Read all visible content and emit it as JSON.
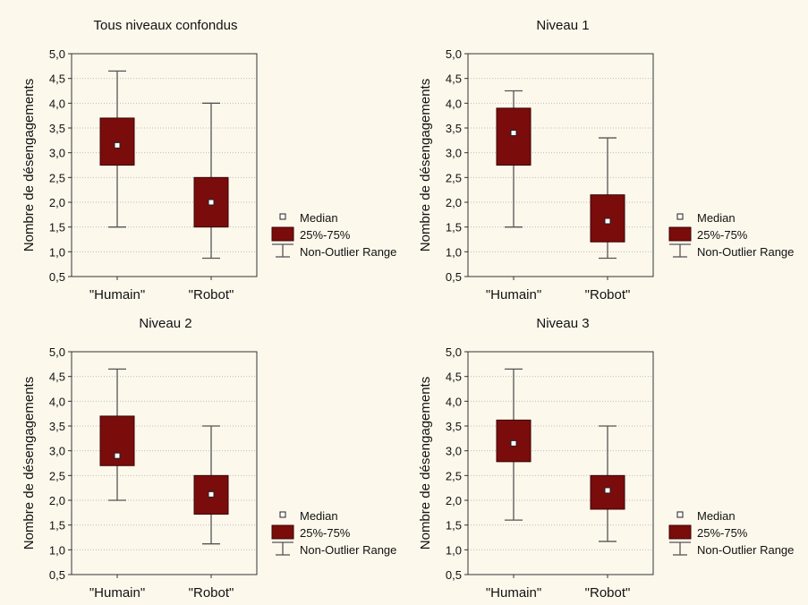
{
  "colors": {
    "background": "#fdf8ec",
    "box_fill": "#7b0c0c",
    "whisker": "#555555",
    "grid": "#bdbdbd"
  },
  "legend": {
    "median": "Median",
    "box": "25%-75%",
    "range": "Non-Outlier Range"
  },
  "chart_data": [
    {
      "type": "box",
      "title": "Tous niveaux confondus",
      "ylabel": "Nombre de désengagements",
      "ylim": [
        0.5,
        5.0
      ],
      "yticks": [
        "0,5",
        "1,0",
        "1,5",
        "2,0",
        "2,5",
        "3,0",
        "3,5",
        "4,0",
        "4,5",
        "5,0"
      ],
      "categories": [
        "\"Humain\"",
        "\"Robot\""
      ],
      "boxes": [
        {
          "min": 1.5,
          "q1": 2.75,
          "median": 3.15,
          "q3": 3.7,
          "max": 4.65
        },
        {
          "min": 0.87,
          "q1": 1.5,
          "median": 2.0,
          "q3": 2.5,
          "max": 4.0
        }
      ]
    },
    {
      "type": "box",
      "title": "Niveau 1",
      "ylabel": "Nombre de désengagements",
      "ylim": [
        0.5,
        5.0
      ],
      "yticks": [
        "0,5",
        "1,0",
        "1,5",
        "2,0",
        "2,5",
        "3,0",
        "3,5",
        "4,0",
        "4,5",
        "5,0"
      ],
      "categories": [
        "\"Humain\"",
        "\"Robot\""
      ],
      "boxes": [
        {
          "min": 1.5,
          "q1": 2.75,
          "median": 3.4,
          "q3": 3.9,
          "max": 4.25
        },
        {
          "min": 0.87,
          "q1": 1.2,
          "median": 1.62,
          "q3": 2.15,
          "max": 3.3
        }
      ]
    },
    {
      "type": "box",
      "title": "Niveau 2",
      "ylabel": "Nombre de désengagements",
      "ylim": [
        0.5,
        5.0
      ],
      "yticks": [
        "0,5",
        "1,0",
        "1,5",
        "2,0",
        "2,5",
        "3,0",
        "3,5",
        "4,0",
        "4,5",
        "5,0"
      ],
      "categories": [
        "\"Humain\"",
        "\"Robot\""
      ],
      "boxes": [
        {
          "min": 2.0,
          "q1": 2.7,
          "median": 2.9,
          "q3": 3.7,
          "max": 4.65
        },
        {
          "min": 1.12,
          "q1": 1.72,
          "median": 2.12,
          "q3": 2.5,
          "max": 3.5
        }
      ]
    },
    {
      "type": "box",
      "title": "Niveau 3",
      "ylabel": "Nombre de désengagements",
      "ylim": [
        0.5,
        5.0
      ],
      "yticks": [
        "0,5",
        "1,0",
        "1,5",
        "2,0",
        "2,5",
        "3,0",
        "3,5",
        "4,0",
        "4,5",
        "5,0"
      ],
      "categories": [
        "\"Humain\"",
        "\"Robot\""
      ],
      "boxes": [
        {
          "min": 1.6,
          "q1": 2.78,
          "median": 3.15,
          "q3": 3.62,
          "max": 4.65
        },
        {
          "min": 1.17,
          "q1": 1.82,
          "median": 2.2,
          "q3": 2.5,
          "max": 3.5
        }
      ]
    }
  ]
}
